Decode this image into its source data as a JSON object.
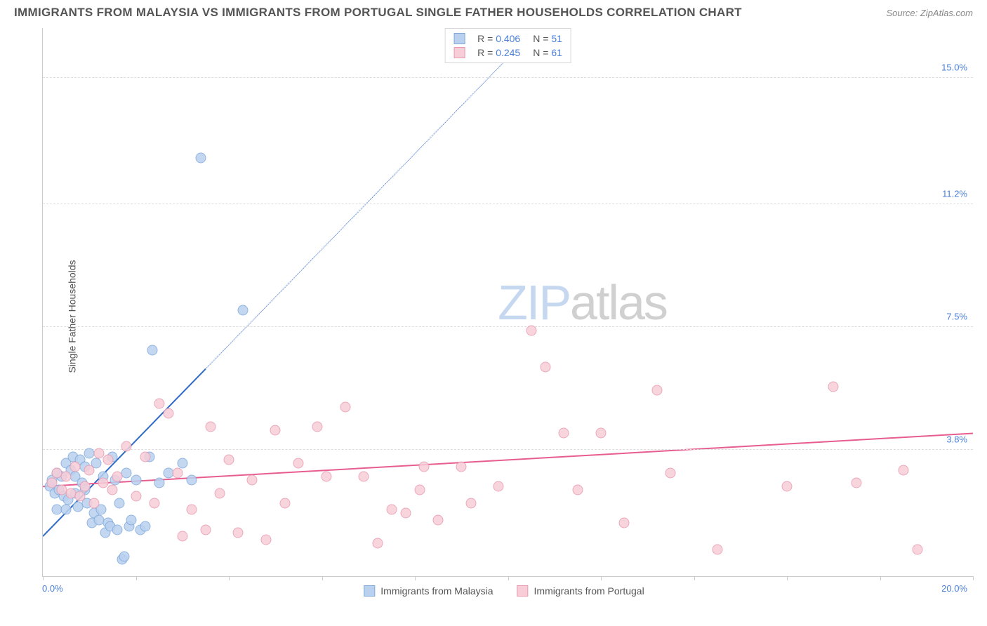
{
  "header": {
    "title": "IMMIGRANTS FROM MALAYSIA VS IMMIGRANTS FROM PORTUGAL SINGLE FATHER HOUSEHOLDS CORRELATION CHART",
    "source": "Source: ZipAtlas.com"
  },
  "ylabel": "Single Father Households",
  "watermark": {
    "part1": "ZIP",
    "part2": "atlas"
  },
  "chart": {
    "type": "scatter",
    "xlim": [
      0,
      20
    ],
    "ylim": [
      0,
      16.5
    ],
    "yticks": [
      {
        "pct": 3.8,
        "label": "3.8%"
      },
      {
        "pct": 7.5,
        "label": "7.5%"
      },
      {
        "pct": 11.2,
        "label": "11.2%"
      },
      {
        "pct": 15.0,
        "label": "15.0%"
      }
    ],
    "xtick_start": "0.0%",
    "xtick_end": "20.0%",
    "xtick_positions_pct": [
      0,
      10,
      20,
      30,
      40,
      50,
      60,
      70,
      80,
      90,
      100
    ],
    "background_color": "#ffffff",
    "grid_color": "#dddddd",
    "series": [
      {
        "name": "Immigrants from Malaysia",
        "key": "malaysia",
        "fill": "#b9d1ef",
        "stroke": "#7fa9db",
        "marker_size": 15,
        "R": "0.406",
        "N": "51",
        "trend": {
          "x1": 0,
          "y1": 1.2,
          "x2": 20,
          "y2": 30.0,
          "solid_until_x": 3.5,
          "stroke_solid": "#2e6ac7",
          "stroke_dash": "#6a93d8",
          "width": 2
        },
        "points": [
          {
            "x": 0.15,
            "y": 2.7
          },
          {
            "x": 0.2,
            "y": 2.9
          },
          {
            "x": 0.25,
            "y": 2.5
          },
          {
            "x": 0.3,
            "y": 3.1
          },
          {
            "x": 0.35,
            "y": 2.6
          },
          {
            "x": 0.4,
            "y": 3.0
          },
          {
            "x": 0.45,
            "y": 2.4
          },
          {
            "x": 0.5,
            "y": 3.4
          },
          {
            "x": 0.55,
            "y": 2.3
          },
          {
            "x": 0.6,
            "y": 3.2
          },
          {
            "x": 0.65,
            "y": 3.6
          },
          {
            "x": 0.7,
            "y": 3.0
          },
          {
            "x": 0.75,
            "y": 2.1
          },
          {
            "x": 0.8,
            "y": 3.5
          },
          {
            "x": 0.85,
            "y": 2.8
          },
          {
            "x": 0.9,
            "y": 3.3
          },
          {
            "x": 0.95,
            "y": 2.2
          },
          {
            "x": 1.0,
            "y": 3.7
          },
          {
            "x": 1.05,
            "y": 1.6
          },
          {
            "x": 1.1,
            "y": 1.9
          },
          {
            "x": 1.15,
            "y": 3.4
          },
          {
            "x": 1.2,
            "y": 1.7
          },
          {
            "x": 1.25,
            "y": 2.0
          },
          {
            "x": 1.3,
            "y": 3.0
          },
          {
            "x": 1.35,
            "y": 1.3
          },
          {
            "x": 1.4,
            "y": 1.6
          },
          {
            "x": 1.45,
            "y": 1.5
          },
          {
            "x": 1.5,
            "y": 3.6
          },
          {
            "x": 1.55,
            "y": 2.9
          },
          {
            "x": 1.6,
            "y": 1.4
          },
          {
            "x": 1.65,
            "y": 2.2
          },
          {
            "x": 1.7,
            "y": 0.5
          },
          {
            "x": 1.75,
            "y": 0.6
          },
          {
            "x": 1.8,
            "y": 3.1
          },
          {
            "x": 1.85,
            "y": 1.5
          },
          {
            "x": 1.9,
            "y": 1.7
          },
          {
            "x": 2.0,
            "y": 2.9
          },
          {
            "x": 2.1,
            "y": 1.4
          },
          {
            "x": 2.2,
            "y": 1.5
          },
          {
            "x": 2.3,
            "y": 3.6
          },
          {
            "x": 2.35,
            "y": 6.8
          },
          {
            "x": 2.5,
            "y": 2.8
          },
          {
            "x": 2.7,
            "y": 3.1
          },
          {
            "x": 3.0,
            "y": 3.4
          },
          {
            "x": 3.2,
            "y": 2.9
          },
          {
            "x": 3.4,
            "y": 12.6
          },
          {
            "x": 4.3,
            "y": 8.0
          },
          {
            "x": 0.3,
            "y": 2.0
          },
          {
            "x": 0.5,
            "y": 2.0
          },
          {
            "x": 0.7,
            "y": 2.5
          },
          {
            "x": 0.9,
            "y": 2.6
          }
        ]
      },
      {
        "name": "Immigrants from Portugal",
        "key": "portugal",
        "fill": "#f7cdd8",
        "stroke": "#e79ab0",
        "marker_size": 15,
        "R": "0.245",
        "N": "61",
        "trend": {
          "x1": 0,
          "y1": 2.7,
          "x2": 20,
          "y2": 4.3,
          "stroke_solid": "#e75d8f",
          "width": 2
        },
        "points": [
          {
            "x": 0.2,
            "y": 2.8
          },
          {
            "x": 0.3,
            "y": 3.1
          },
          {
            "x": 0.4,
            "y": 2.6
          },
          {
            "x": 0.5,
            "y": 3.0
          },
          {
            "x": 0.6,
            "y": 2.5
          },
          {
            "x": 0.7,
            "y": 3.3
          },
          {
            "x": 0.8,
            "y": 2.4
          },
          {
            "x": 0.9,
            "y": 2.7
          },
          {
            "x": 1.0,
            "y": 3.2
          },
          {
            "x": 1.1,
            "y": 2.2
          },
          {
            "x": 1.2,
            "y": 3.7
          },
          {
            "x": 1.3,
            "y": 2.8
          },
          {
            "x": 1.4,
            "y": 3.5
          },
          {
            "x": 1.5,
            "y": 2.6
          },
          {
            "x": 1.6,
            "y": 3.0
          },
          {
            "x": 1.8,
            "y": 3.9
          },
          {
            "x": 2.0,
            "y": 2.4
          },
          {
            "x": 2.2,
            "y": 3.6
          },
          {
            "x": 2.4,
            "y": 2.2
          },
          {
            "x": 2.5,
            "y": 5.2
          },
          {
            "x": 2.7,
            "y": 4.9
          },
          {
            "x": 2.9,
            "y": 3.1
          },
          {
            "x": 3.0,
            "y": 1.2
          },
          {
            "x": 3.2,
            "y": 2.0
          },
          {
            "x": 3.5,
            "y": 1.4
          },
          {
            "x": 3.6,
            "y": 4.5
          },
          {
            "x": 3.8,
            "y": 2.5
          },
          {
            "x": 4.0,
            "y": 3.5
          },
          {
            "x": 4.2,
            "y": 1.3
          },
          {
            "x": 4.5,
            "y": 2.9
          },
          {
            "x": 4.8,
            "y": 1.1
          },
          {
            "x": 5.0,
            "y": 4.4
          },
          {
            "x": 5.2,
            "y": 2.2
          },
          {
            "x": 5.5,
            "y": 3.4
          },
          {
            "x": 5.9,
            "y": 4.5
          },
          {
            "x": 6.1,
            "y": 3.0
          },
          {
            "x": 6.5,
            "y": 5.1
          },
          {
            "x": 6.9,
            "y": 3.0
          },
          {
            "x": 7.2,
            "y": 1.0
          },
          {
            "x": 7.5,
            "y": 2.0
          },
          {
            "x": 7.8,
            "y": 1.9
          },
          {
            "x": 8.1,
            "y": 2.6
          },
          {
            "x": 8.2,
            "y": 3.3
          },
          {
            "x": 8.5,
            "y": 1.7
          },
          {
            "x": 9.0,
            "y": 3.3
          },
          {
            "x": 9.2,
            "y": 2.2
          },
          {
            "x": 9.8,
            "y": 2.7
          },
          {
            "x": 10.5,
            "y": 7.4
          },
          {
            "x": 10.8,
            "y": 6.3
          },
          {
            "x": 11.2,
            "y": 4.3
          },
          {
            "x": 11.5,
            "y": 2.6
          },
          {
            "x": 12.0,
            "y": 4.3
          },
          {
            "x": 12.5,
            "y": 1.6
          },
          {
            "x": 13.2,
            "y": 5.6
          },
          {
            "x": 13.5,
            "y": 3.1
          },
          {
            "x": 14.5,
            "y": 0.8
          },
          {
            "x": 16.0,
            "y": 2.7
          },
          {
            "x": 17.0,
            "y": 5.7
          },
          {
            "x": 17.5,
            "y": 2.8
          },
          {
            "x": 18.5,
            "y": 3.2
          },
          {
            "x": 18.8,
            "y": 0.8
          }
        ]
      }
    ]
  },
  "legend_top": {
    "rows": [
      {
        "swatch_fill": "#b9d1ef",
        "swatch_stroke": "#7fa9db",
        "R_label": "R =",
        "R_val": "0.406",
        "N_label": "N =",
        "N_val": "51"
      },
      {
        "swatch_fill": "#f7cdd8",
        "swatch_stroke": "#e79ab0",
        "R_label": "R =",
        "R_val": "0.245",
        "N_label": "N =",
        "N_val": "61"
      }
    ]
  },
  "legend_bottom": {
    "items": [
      {
        "swatch_fill": "#b9d1ef",
        "swatch_stroke": "#7fa9db",
        "label": "Immigrants from Malaysia"
      },
      {
        "swatch_fill": "#f7cdd8",
        "swatch_stroke": "#e79ab0",
        "label": "Immigrants from Portugal"
      }
    ]
  }
}
